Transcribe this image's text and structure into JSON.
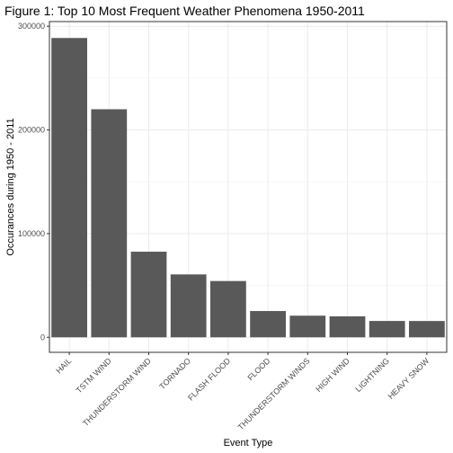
{
  "chart_data": {
    "type": "bar",
    "title": "Figure 1: Top 10 Most Frequent Weather Phenomena 1950-2011",
    "xlabel": "Event Type",
    "ylabel": "Occurances during 1950 - 2011",
    "categories": [
      "HAIL",
      "TSTM WIND",
      "THUNDERSTORM WIND",
      "TORNADO",
      "FLASH FLOOD",
      "FLOOD",
      "THUNDERSTORM WINDS",
      "HIGH WIND",
      "LIGHTNING",
      "HEAVY SNOW"
    ],
    "values": [
      288661,
      219940,
      82563,
      60652,
      54277,
      25326,
      20843,
      20212,
      15754,
      15708
    ],
    "yticks": [
      0,
      100000,
      200000,
      300000
    ],
    "ytick_labels": [
      "0",
      "100000",
      "200000",
      "300000"
    ],
    "ylim": [
      -14500,
      304500
    ],
    "grid": true,
    "bar_color": "#595959",
    "grid_color": "#ebebeb"
  }
}
